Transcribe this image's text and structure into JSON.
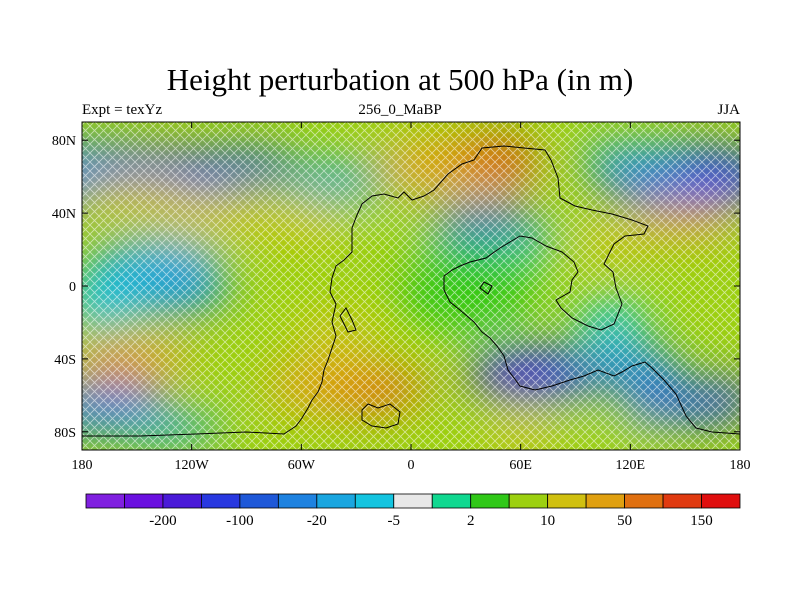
{
  "colors": {
    "palette": [
      "#8020e0",
      "#6a10e0",
      "#4a1ad8",
      "#2838e0",
      "#1e58d8",
      "#1e82e0",
      "#1aa6e0",
      "#14c4e0",
      "#e8e8e8",
      "#10d890",
      "#30c818",
      "#9cd010",
      "#d0c010",
      "#e0a010",
      "#e07010",
      "#e03a10",
      "#e00e0e"
    ],
    "hatch": "#ffffff",
    "coast": "#000000"
  },
  "chart_data": {
    "type": "heatmap",
    "title": "Height perturbation at 500 hPa (in m)",
    "left_label": "Expt = texYz",
    "center_label": "256_0_MaBP",
    "right_label": "JJA",
    "x_ticks": [
      "180",
      "120W",
      "60W",
      "0",
      "60E",
      "120E",
      "180"
    ],
    "y_ticks": [
      "80N",
      "40N",
      "0",
      "40S",
      "80S"
    ],
    "xlim": [
      -180,
      180
    ],
    "ylim": [
      -90,
      90
    ],
    "colorbar_labels": [
      "-200",
      "-100",
      "-20",
      "-5",
      "2",
      "10",
      "50",
      "150"
    ],
    "hatching": "crosshatch where not significant"
  }
}
